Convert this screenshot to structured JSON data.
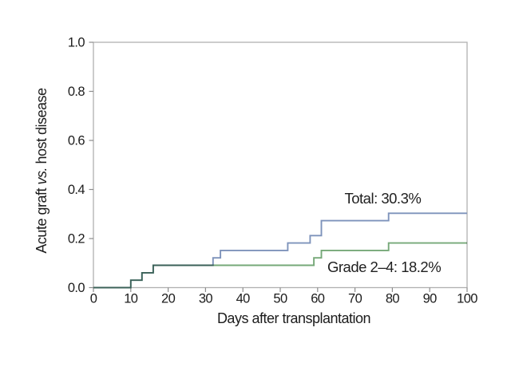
{
  "chart_data": {
    "type": "line",
    "subtype": "step-cumulative-incidence",
    "title": "",
    "xlabel": "Days after transplantation",
    "ylabel": "Acute graft vs. host disease",
    "ylabel_italic_word": "vs.",
    "xlim": [
      0,
      100
    ],
    "ylim": [
      0,
      1.0
    ],
    "xticks": [
      0,
      10,
      20,
      30,
      40,
      50,
      60,
      70,
      80,
      90,
      100
    ],
    "yticks": [
      0.0,
      0.2,
      0.4,
      0.6,
      0.8,
      1.0
    ],
    "ytick_labels": [
      "0.0",
      "0.2",
      "0.4",
      "0.6",
      "0.8",
      "1.0"
    ],
    "grid": false,
    "legend_position": "inline-annotations",
    "series": [
      {
        "name": "Total",
        "color": "#7e93bb",
        "final_value_pct": "30.3%",
        "points": [
          [
            0,
            0
          ],
          [
            10,
            0.0303
          ],
          [
            13,
            0.0606
          ],
          [
            16,
            0.0909
          ],
          [
            32,
            0.1212
          ],
          [
            34,
            0.1515
          ],
          [
            52,
            0.1818
          ],
          [
            58,
            0.2121
          ],
          [
            61,
            0.2727
          ],
          [
            79,
            0.303
          ],
          [
            100,
            0.303
          ]
        ]
      },
      {
        "name": "Grade 2–4",
        "color": "#76a878",
        "final_value_pct": "18.2%",
        "points": [
          [
            0,
            0
          ],
          [
            10,
            0.0303
          ],
          [
            13,
            0.0606
          ],
          [
            16,
            0.0909
          ],
          [
            59,
            0.1212
          ],
          [
            61,
            0.1515
          ],
          [
            79,
            0.1818
          ],
          [
            100,
            0.1818
          ]
        ]
      }
    ],
    "annotations": [
      {
        "text": "Total: 30.3%",
        "x": 67.2,
        "y": 0.343,
        "series": "Total"
      },
      {
        "text": "Grade 2–4: 18.2%",
        "x": 62.6,
        "y": 0.063,
        "series": "Grade 2–4"
      }
    ],
    "axis_color": "#b0b0b0",
    "tick_color": "#8c8c8c",
    "text_color": "#1c1c1c"
  }
}
